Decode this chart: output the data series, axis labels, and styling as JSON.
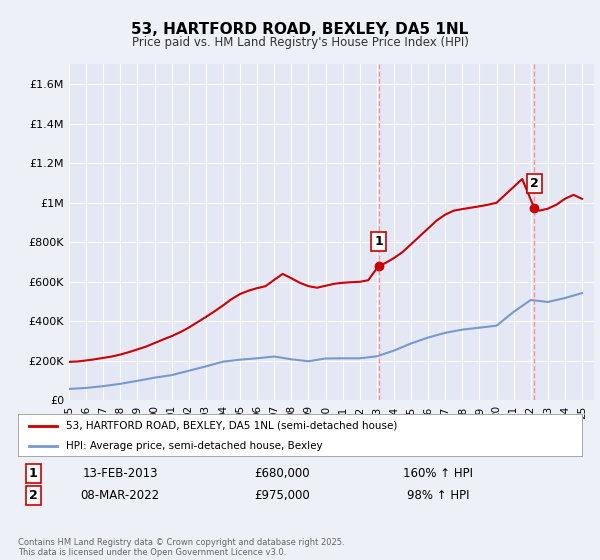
{
  "title": "53, HARTFORD ROAD, BEXLEY, DA5 1NL",
  "subtitle": "Price paid vs. HM Land Registry's House Price Index (HPI)",
  "background_color": "#eef0f8",
  "plot_bg_color": "#e4e8f5",
  "grid_color": "#ffffff",
  "red_line_color": "#cc0000",
  "blue_line_color": "#7799cc",
  "vline_color": "#ff8888",
  "ylabel_ticks": [
    "£0",
    "£200K",
    "£400K",
    "£600K",
    "£800K",
    "£1M",
    "£1.2M",
    "£1.4M",
    "£1.6M"
  ],
  "ytick_values": [
    0,
    200000,
    400000,
    600000,
    800000,
    1000000,
    1200000,
    1400000,
    1600000
  ],
  "ylim": [
    0,
    1700000
  ],
  "legend_label_red": "53, HARTFORD ROAD, BEXLEY, DA5 1NL (semi-detached house)",
  "legend_label_blue": "HPI: Average price, semi-detached house, Bexley",
  "sale1_date": "13-FEB-2013",
  "sale1_price": "£680,000",
  "sale1_hpi": "160% ↑ HPI",
  "sale1_year": 2013.1,
  "sale1_value": 680000,
  "sale2_date": "08-MAR-2022",
  "sale2_price": "£975,000",
  "sale2_hpi": "98% ↑ HPI",
  "sale2_year": 2022.2,
  "sale2_value": 975000,
  "footer": "Contains HM Land Registry data © Crown copyright and database right 2025.\nThis data is licensed under the Open Government Licence v3.0.",
  "xmin": 1995.3,
  "xmax": 2025.7
}
